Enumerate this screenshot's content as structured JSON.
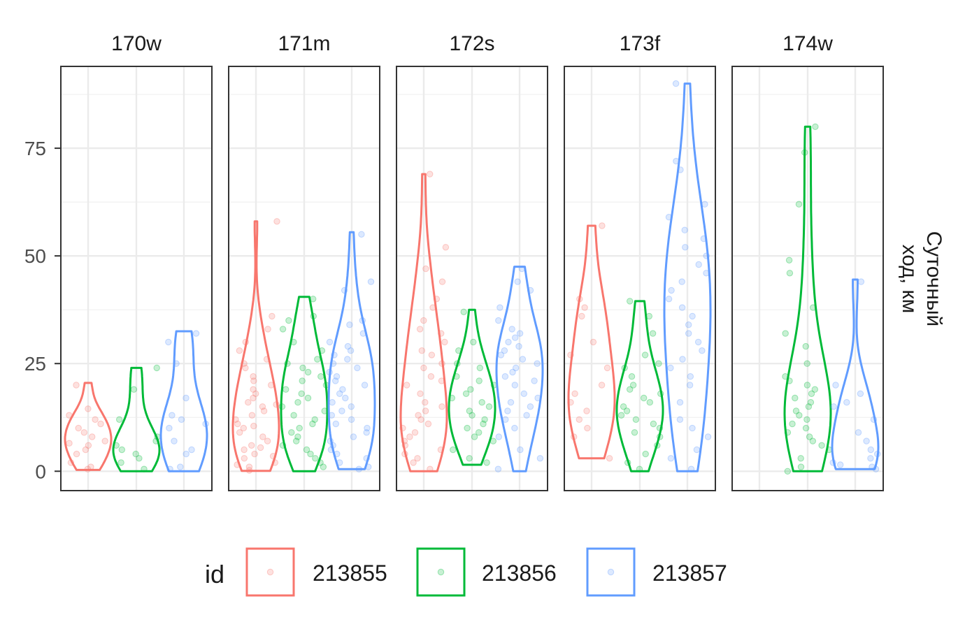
{
  "chart_data": {
    "type": "violin",
    "facets": [
      "170w",
      "171m",
      "172s",
      "173f",
      "174w"
    ],
    "ylabel": "Суточный ход, км",
    "yticks": [
      0,
      25,
      50,
      75
    ],
    "ylim": [
      -4.5,
      94
    ],
    "grid": true,
    "legend": {
      "title": "id",
      "position": "bottom",
      "items": [
        "213855",
        "213856",
        "213857"
      ]
    },
    "series": [
      {
        "name": "213855",
        "color": "#F8766D",
        "panels": [
          {
            "facet": "170w",
            "min": 0.3,
            "max": 20.5,
            "values": [
              0.5,
              1,
              2,
              4,
              5,
              6,
              6.5,
              7,
              8,
              9,
              10,
              11,
              12,
              13,
              14.5,
              20
            ]
          },
          {
            "facet": "171m",
            "min": 0.1,
            "max": 58,
            "values": [
              0.2,
              1,
              1.5,
              2,
              3,
              3.5,
              4,
              5,
              5.5,
              6,
              7,
              8,
              9,
              10,
              10.5,
              11,
              12,
              13,
              14,
              15,
              15.5,
              16,
              17,
              18,
              19,
              20,
              21,
              22,
              24,
              25,
              26,
              28,
              30,
              33,
              36,
              58
            ]
          },
          {
            "facet": "172s",
            "min": 0,
            "max": 69,
            "values": [
              0.5,
              2,
              3,
              4,
              5,
              6,
              7,
              8,
              9,
              10,
              11,
              12,
              13,
              14,
              15,
              16,
              18,
              20,
              21,
              22,
              24,
              25,
              27,
              28,
              30,
              32,
              33,
              35,
              38,
              40,
              44,
              47,
              52,
              69
            ]
          },
          {
            "facet": "173f",
            "min": 3,
            "max": 57,
            "values": [
              3,
              8,
              10,
              12,
              14,
              16,
              18,
              20,
              24,
              27,
              30,
              36,
              38,
              40,
              57
            ]
          },
          {
            "facet": "174w",
            "min": null,
            "max": null,
            "values": []
          }
        ]
      },
      {
        "name": "213856",
        "color": "#00BA38",
        "panels": [
          {
            "facet": "170w",
            "min": 0,
            "max": 24,
            "values": [
              0.5,
              2,
              3,
              4,
              5,
              6,
              7,
              8,
              12,
              19,
              24
            ]
          },
          {
            "facet": "171m",
            "min": 0,
            "max": 40.5,
            "values": [
              1,
              2,
              3,
              4,
              5,
              6,
              7,
              8,
              9,
              10,
              11,
              12,
              13,
              14,
              15,
              16,
              17,
              18,
              19,
              20,
              21,
              22,
              23,
              24,
              25,
              26,
              28,
              30,
              33,
              35,
              36,
              40
            ]
          },
          {
            "facet": "172s",
            "min": 1.5,
            "max": 37.5,
            "values": [
              2,
              3,
              5,
              7,
              8,
              9,
              10,
              11,
              12,
              13,
              14,
              15,
              16,
              17,
              18,
              19,
              20,
              21,
              22,
              24,
              25,
              28,
              30,
              37
            ]
          },
          {
            "facet": "173f",
            "min": 0,
            "max": 39.5,
            "values": [
              0.5,
              2,
              4,
              6,
              8,
              9,
              10,
              11,
              12,
              13,
              14,
              15,
              16,
              17,
              18,
              19,
              20,
              22,
              24,
              25,
              27,
              32,
              36,
              39.5
            ]
          },
          {
            "facet": "174w",
            "min": 0,
            "max": 80,
            "values": [
              0,
              1,
              3,
              5,
              6,
              7,
              8,
              9,
              10,
              11,
              12,
              13,
              14,
              15,
              16,
              17,
              18,
              19,
              20,
              21,
              22,
              25,
              29,
              32,
              38,
              46,
              49,
              62,
              74,
              80
            ]
          }
        ]
      },
      {
        "name": "213857",
        "color": "#619CFF",
        "panels": [
          {
            "facet": "170w",
            "min": 0,
            "max": 32.5,
            "values": [
              0.5,
              1,
              4,
              5,
              7,
              10,
              11,
              12,
              13,
              17,
              25,
              30,
              32
            ]
          },
          {
            "facet": "171m",
            "min": 0.5,
            "max": 55.5,
            "values": [
              0.5,
              1,
              2,
              3,
              4,
              5,
              6,
              7,
              8,
              9,
              10,
              11,
              12,
              13,
              14,
              15,
              16,
              17,
              18,
              19,
              20,
              21,
              22,
              23,
              24,
              25,
              26,
              27,
              28,
              29,
              30,
              32,
              34,
              35,
              42,
              44,
              55
            ]
          },
          {
            "facet": "172s",
            "min": 0,
            "max": 47.5,
            "values": [
              0.5,
              3,
              5,
              8,
              10,
              12,
              13,
              14,
              15,
              16,
              17,
              18,
              20,
              21,
              22,
              23,
              24,
              25,
              26,
              27,
              28,
              29,
              30,
              31,
              32,
              33,
              35,
              38,
              42,
              44,
              47
            ]
          },
          {
            "facet": "173f",
            "min": 0,
            "max": 90,
            "values": [
              0.5,
              3,
              5,
              8,
              10,
              12,
              16,
              20,
              22,
              24,
              26,
              28,
              30,
              32,
              34,
              36,
              38,
              40,
              42,
              44,
              46,
              48,
              50,
              52,
              54,
              56,
              59,
              62,
              70,
              72,
              90
            ]
          },
          {
            "facet": "174w",
            "min": 0.5,
            "max": 44.5,
            "values": [
              0.5,
              1,
              1.5,
              2,
              3,
              4,
              5,
              7,
              9,
              12,
              15,
              16,
              18,
              20,
              44
            ]
          }
        ]
      }
    ]
  }
}
